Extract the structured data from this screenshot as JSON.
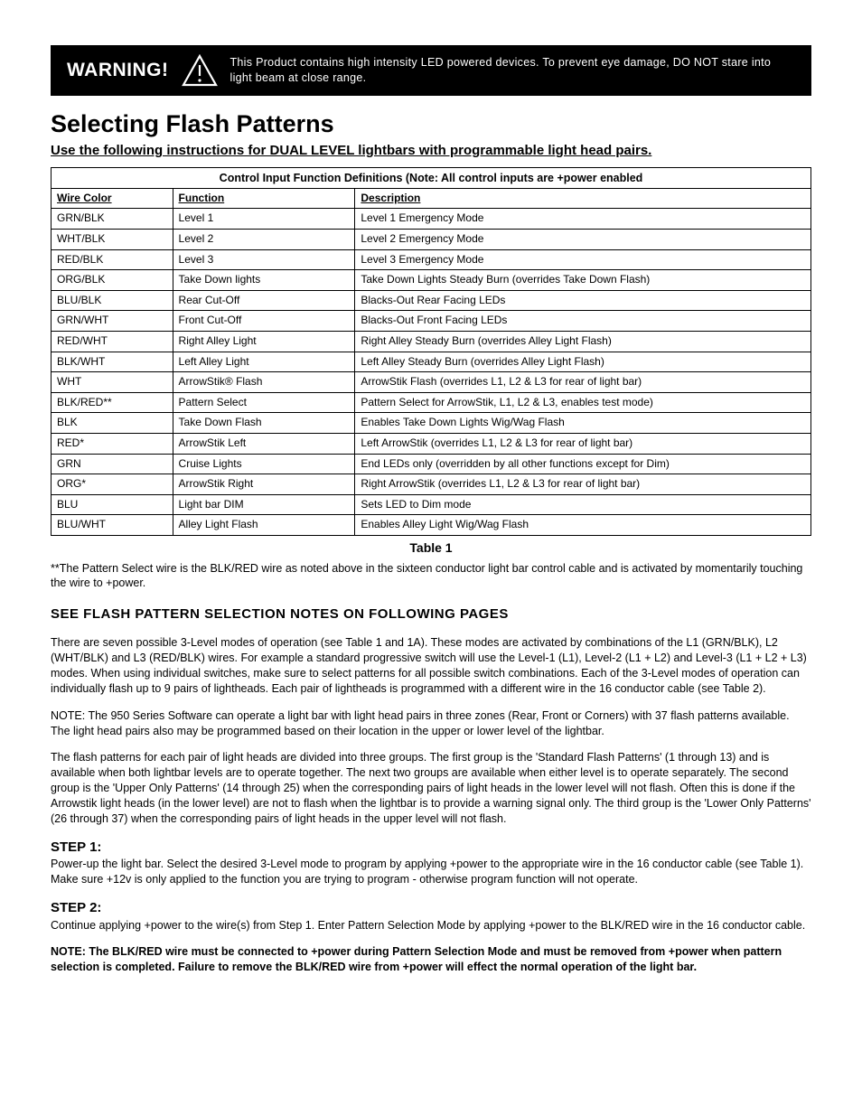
{
  "warning": {
    "label": "WARNING!",
    "text": "This Product contains high intensity LED powered devices. To prevent eye damage, DO NOT stare into light beam at close range."
  },
  "title": "Selecting Flash Patterns",
  "subhead": "Use the following instructions for DUAL LEVEL lightbars with programmable light head pairs.",
  "table": {
    "caption_top": "Control Input Function Definitions (Note: All control inputs are +power enabled",
    "headers": {
      "col1": "Wire Color",
      "col2": "Function",
      "col3": "Description"
    },
    "rows": [
      {
        "c1": "GRN/BLK",
        "c2": "Level 1",
        "c3": "Level 1 Emergency Mode"
      },
      {
        "c1": "WHT/BLK",
        "c2": "Level 2",
        "c3": "Level 2 Emergency Mode"
      },
      {
        "c1": "RED/BLK",
        "c2": "Level 3",
        "c3": "Level 3 Emergency Mode"
      },
      {
        "c1": "ORG/BLK",
        "c2": "Take Down lights",
        "c3": "Take Down Lights Steady Burn (overrides Take Down Flash)"
      },
      {
        "c1": "BLU/BLK",
        "c2": "Rear Cut-Off",
        "c3": "Blacks-Out Rear Facing LEDs"
      },
      {
        "c1": "GRN/WHT",
        "c2": "Front Cut-Off",
        "c3": "Blacks-Out Front Facing LEDs"
      },
      {
        "c1": "RED/WHT",
        "c2": "Right Alley Light",
        "c3": "Right Alley Steady Burn (overrides Alley Light Flash)"
      },
      {
        "c1": "BLK/WHT",
        "c2": "Left Alley Light",
        "c3": "Left Alley Steady Burn (overrides Alley Light Flash)"
      },
      {
        "c1": "WHT",
        "c2": "ArrowStik® Flash",
        "c3": "ArrowStik Flash (overrides L1, L2 & L3 for rear of light bar)"
      },
      {
        "c1": "BLK/RED**",
        "c2": "Pattern Select",
        "c3": "Pattern Select for ArrowStik, L1, L2 & L3, enables test mode)"
      },
      {
        "c1": "BLK",
        "c2": "Take Down Flash",
        "c3": "Enables Take Down Lights Wig/Wag Flash"
      },
      {
        "c1": "RED*",
        "c2": "ArrowStik Left",
        "c3": "Left ArrowStik (overrides L1, L2 & L3 for rear of light bar)"
      },
      {
        "c1": "GRN",
        "c2": "Cruise Lights",
        "c3": "End LEDs only (overridden by all other functions except for Dim)"
      },
      {
        "c1": "ORG*",
        "c2": "ArrowStik Right",
        "c3": "Right ArrowStik (overrides L1, L2 & L3 for rear of light bar)"
      },
      {
        "c1": "BLU",
        "c2": "Light bar DIM",
        "c3": "Sets LED to Dim mode"
      },
      {
        "c1": "BLU/WHT",
        "c2": "Alley Light Flash",
        "c3": "Enables Alley Light Wig/Wag Flash"
      }
    ],
    "label": "Table 1"
  },
  "footnote": "**The Pattern Select wire is the BLK/RED wire as noted above in the sixteen conductor light bar control cable and is activated by momentarily touching the wire to +power.",
  "section_heading": "SEE  FLASH PATTERN SELECTION NOTES ON FOLLOWING PAGES",
  "p1": "There are seven possible 3-Level modes of operation (see Table 1 and 1A).  These modes are activated by combinations of the L1 (GRN/BLK), L2 (WHT/BLK) and L3 (RED/BLK) wires.  For example a standard progressive switch will use the Level-1 (L1), Level-2 (L1 + L2) and Level-3 (L1 + L2 + L3) modes.  When using individual switches, make sure to select patterns for all possible switch combinations.  Each of the 3-Level modes of operation can individually flash up to 9 pairs of lightheads.  Each pair of lightheads is programmed with a different wire in the 16 conductor cable (see Table 2).",
  "p2": "NOTE:  The 950 Series Software can operate a light bar with light head pairs in three zones (Rear, Front or Corners) with 37 flash patterns available.  The light head pairs also may be programmed based on their location in the upper or lower level of the lightbar.",
  "p3": "The flash patterns for each pair of light heads are divided into three groups.  The first group is the 'Standard Flash Patterns' (1 through 13) and is available when both lightbar levels are to operate together.  The next two groups are available when either level is to operate separately.  The second group is the 'Upper Only Patterns' (14 through 25) when the corresponding pairs of light heads in the lower level will not flash. Often this is done if the Arrowstik light heads (in the lower level) are not to flash when the lightbar is to provide a warning signal only. The third group is the 'Lower Only Patterns' (26 through 37) when the corresponding pairs of light heads in the upper level will not flash.",
  "step1": {
    "head": "STEP 1:",
    "body": "Power-up the light bar.  Select the desired 3-Level mode to program by applying +power to the appropriate wire in the 16 conductor cable (see Table 1). Make sure +12v is only applied to the function you are trying to program - otherwise program function will not operate."
  },
  "step2": {
    "head": "STEP 2:",
    "body": "Continue applying +power to the wire(s) from Step 1.  Enter Pattern Selection Mode by applying +power to the BLK/RED wire in the 16 conductor cable."
  },
  "note_bold": "NOTE:  The BLK/RED wire must be connected to +power during Pattern Selection Mode and must be removed from +power when pattern selection is completed.  Failure to remove the BLK/RED wire from +power will effect the normal operation of the light bar."
}
